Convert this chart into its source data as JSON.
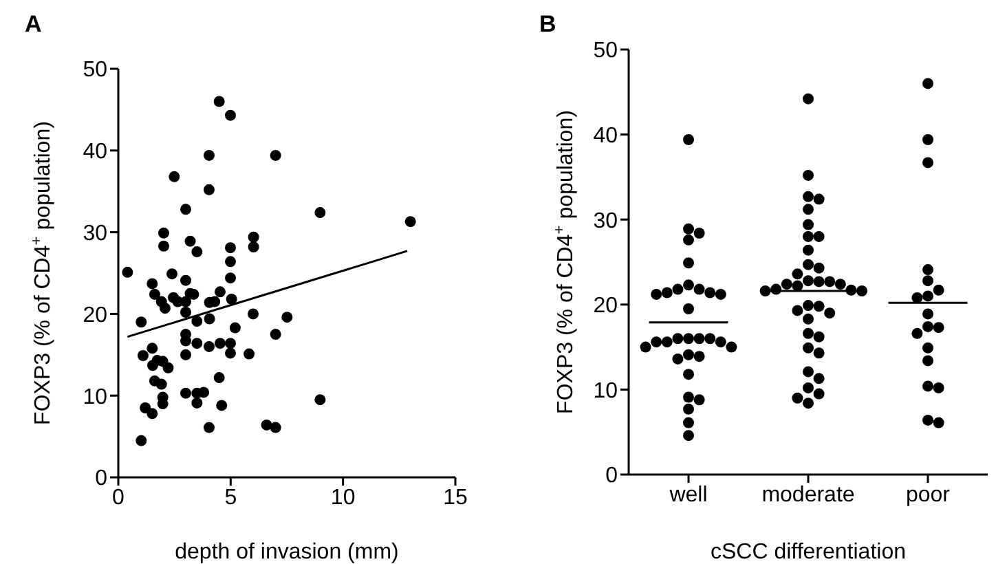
{
  "chart_data": [
    {
      "type": "scatter",
      "title": "A",
      "xlabel": "depth of invasion (mm)",
      "ylabel": "FOXP3 (% of CD4$^{+}$ population)",
      "xlim": [
        0,
        15
      ],
      "xticks": [
        0,
        5,
        10,
        15
      ],
      "ylim": [
        0,
        50
      ],
      "yticks": [
        0,
        10,
        20,
        30,
        40,
        50
      ],
      "series": [
        {
          "marker": "circle",
          "color": "#000000",
          "x": [
            4.49,
            4.99,
            4.04,
            7.0,
            2.49,
            4.04,
            3.0,
            2.02,
            2.02,
            3.2,
            3.5,
            4.99,
            6.02,
            6.02,
            4.99,
            0.41,
            2.39,
            3.0,
            4.99,
            1.51,
            1.62,
            1.92,
            2.45,
            2.65,
            2.08,
            3.0,
            3.2,
            3.35,
            3.0,
            4.06,
            4.29,
            4.53,
            5.04,
            4.06,
            3.5,
            1.02,
            6.0,
            5.2,
            7.0,
            3.0,
            3.0,
            3.5,
            4.04,
            4.53,
            4.99,
            4.99,
            3.0,
            5.82,
            1.1,
            1.51,
            1.73,
            1.98,
            1.53,
            2.22,
            1.62,
            1.92,
            4.49,
            1.98,
            1.98,
            3.0,
            3.5,
            3.8,
            3.5,
            4.6,
            1.2,
            1.51,
            4.04,
            6.6,
            7.0,
            1.02,
            8.98,
            13.0,
            7.51,
            8.98
          ],
          "values": [
            46.0,
            44.3,
            39.4,
            39.4,
            36.8,
            35.2,
            32.8,
            29.9,
            28.3,
            28.9,
            27.6,
            28.1,
            29.4,
            28.2,
            26.4,
            25.1,
            24.9,
            24.1,
            24.4,
            23.7,
            22.4,
            21.5,
            22.0,
            21.5,
            20.7,
            21.5,
            22.5,
            22.4,
            20.2,
            21.4,
            21.5,
            22.7,
            21.8,
            19.4,
            19.1,
            19.0,
            20.0,
            18.3,
            17.5,
            17.5,
            16.7,
            16.4,
            16.0,
            16.4,
            16.4,
            15.2,
            15.0,
            15.1,
            14.9,
            15.8,
            14.3,
            14.2,
            13.7,
            13.4,
            11.8,
            11.4,
            12.2,
            9.8,
            9.0,
            10.3,
            10.3,
            10.4,
            9.1,
            8.8,
            8.5,
            7.8,
            6.1,
            6.4,
            6.1,
            4.5,
            32.4,
            31.3,
            19.6,
            9.5
          ]
        },
        {
          "type": "line",
          "color": "#000000",
          "x": [
            0.41,
            12.86
          ],
          "values": [
            17.2,
            27.7
          ]
        }
      ]
    },
    {
      "type": "scatter",
      "title": "B",
      "xlabel": "cSCC differentiation",
      "ylabel": "FOXP3 (% of CD4$^{+}$ population)",
      "categories": [
        "well",
        "moderate",
        "poor"
      ],
      "ylim": [
        0,
        50
      ],
      "yticks": [
        0,
        10,
        20,
        30,
        40,
        50
      ],
      "series": [
        {
          "marker": "circle",
          "color": "#000000",
          "x": [
            "well",
            "well",
            "well",
            "well",
            "well",
            "well",
            "well",
            "well",
            "well",
            "well",
            "well",
            "well",
            "well",
            "well",
            "well",
            "well",
            "well",
            "well",
            "well",
            "well",
            "well",
            "well",
            "well",
            "well",
            "well",
            "well",
            "well",
            "well",
            "well",
            "well",
            "well",
            "moderate",
            "moderate",
            "moderate",
            "moderate",
            "moderate",
            "moderate",
            "moderate",
            "moderate",
            "moderate",
            "moderate",
            "moderate",
            "moderate",
            "moderate",
            "moderate",
            "moderate",
            "moderate",
            "moderate",
            "moderate",
            "moderate",
            "moderate",
            "moderate",
            "moderate",
            "moderate",
            "moderate",
            "moderate",
            "moderate",
            "moderate",
            "moderate",
            "moderate",
            "moderate",
            "moderate",
            "moderate",
            "moderate",
            "moderate",
            "moderate",
            "moderate",
            "moderate",
            "poor",
            "poor",
            "poor",
            "poor",
            "poor",
            "poor",
            "poor",
            "poor",
            "poor",
            "poor",
            "poor",
            "poor",
            "poor",
            "poor",
            "poor",
            "poor",
            "poor",
            "poor"
          ],
          "values": [
            39.4,
            28.9,
            28.4,
            27.6,
            24.9,
            22.3,
            21.8,
            21.4,
            21.2,
            21.2,
            21.4,
            21.8,
            19.5,
            16.0,
            16.0,
            15.6,
            15.6,
            15.6,
            16.0,
            16.0,
            15.0,
            15.0,
            13.9,
            13.6,
            14.1,
            11.8,
            8.8,
            9.1,
            7.7,
            6.1,
            4.6,
            44.2,
            35.2,
            32.7,
            32.4,
            31.2,
            29.4,
            28.0,
            28.0,
            26.4,
            24.7,
            24.3,
            23.6,
            22.7,
            22.7,
            22.4,
            22.2,
            21.7,
            21.6,
            21.6,
            21.8,
            22.4,
            22.8,
            19.8,
            19.0,
            18.3,
            19.3,
            19.9,
            16.2,
            16.6,
            14.9,
            14.3,
            12.1,
            11.3,
            10.2,
            9.5,
            9.0,
            8.4,
            46.0,
            39.4,
            36.7,
            24.1,
            22.8,
            21.7,
            21.0,
            20.8,
            18.9,
            17.3,
            17.4,
            16.6,
            14.9,
            13.4,
            10.4,
            10.2,
            6.4,
            6.1
          ]
        },
        {
          "type": "box",
          "color": "#000000",
          "boxes": [
            {
              "low": 17.9,
              "q1": 17.9,
              "median": 17.9,
              "q3": 17.9,
              "high": 17.9
            },
            {
              "low": 21.6,
              "q1": 21.6,
              "median": 21.6,
              "q3": 21.6,
              "high": 21.6
            },
            {
              "low": 20.2,
              "q1": 20.2,
              "median": 20.2,
              "q3": 20.2,
              "high": 20.2
            }
          ]
        }
      ]
    }
  ]
}
